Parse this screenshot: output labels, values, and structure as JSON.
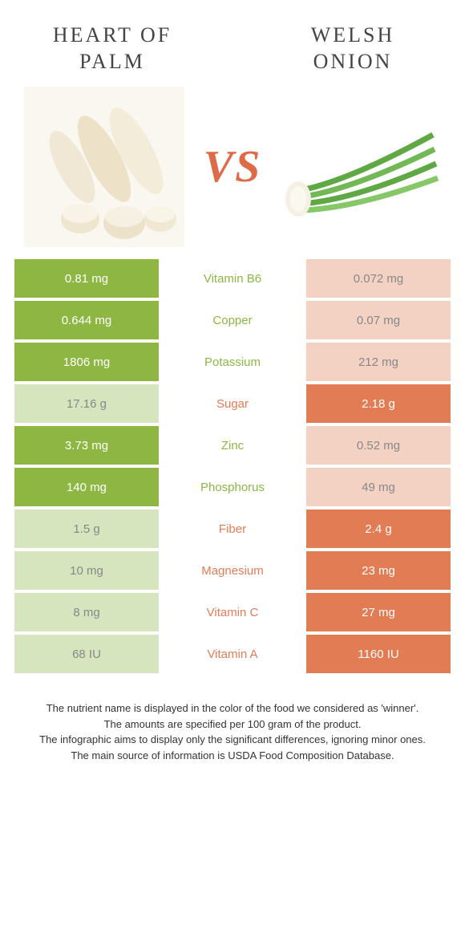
{
  "colors": {
    "left": "#8db742",
    "right": "#e27c55",
    "left_dim": "#d7e5bf",
    "right_dim": "#f3d2c3",
    "vs": "#de6b47",
    "text": "#444444"
  },
  "header": {
    "left_title": "Heart of Palm",
    "right_title": "Welsh onion"
  },
  "vs_label": "VS",
  "rows": [
    {
      "nutrient": "Vitamin B6",
      "left": "0.81 mg",
      "right": "0.072 mg",
      "winner": "left"
    },
    {
      "nutrient": "Copper",
      "left": "0.644 mg",
      "right": "0.07 mg",
      "winner": "left"
    },
    {
      "nutrient": "Potassium",
      "left": "1806 mg",
      "right": "212 mg",
      "winner": "left"
    },
    {
      "nutrient": "Sugar",
      "left": "17.16 g",
      "right": "2.18 g",
      "winner": "right"
    },
    {
      "nutrient": "Zinc",
      "left": "3.73 mg",
      "right": "0.52 mg",
      "winner": "left"
    },
    {
      "nutrient": "Phosphorus",
      "left": "140 mg",
      "right": "49 mg",
      "winner": "left"
    },
    {
      "nutrient": "Fiber",
      "left": "1.5 g",
      "right": "2.4 g",
      "winner": "right"
    },
    {
      "nutrient": "Magnesium",
      "left": "10 mg",
      "right": "23 mg",
      "winner": "right"
    },
    {
      "nutrient": "Vitamin C",
      "left": "8 mg",
      "right": "27 mg",
      "winner": "right"
    },
    {
      "nutrient": "Vitamin A",
      "left": "68 IU",
      "right": "1160 IU",
      "winner": "right"
    }
  ],
  "footer": {
    "line1": "The nutrient name is displayed in the color of the food we considered as 'winner'.",
    "line2": "The amounts are specified per 100 gram of the product.",
    "line3": "The infographic aims to display only the significant differences, ignoring minor ones.",
    "line4": "The main source of information is USDA Food Composition Database."
  }
}
